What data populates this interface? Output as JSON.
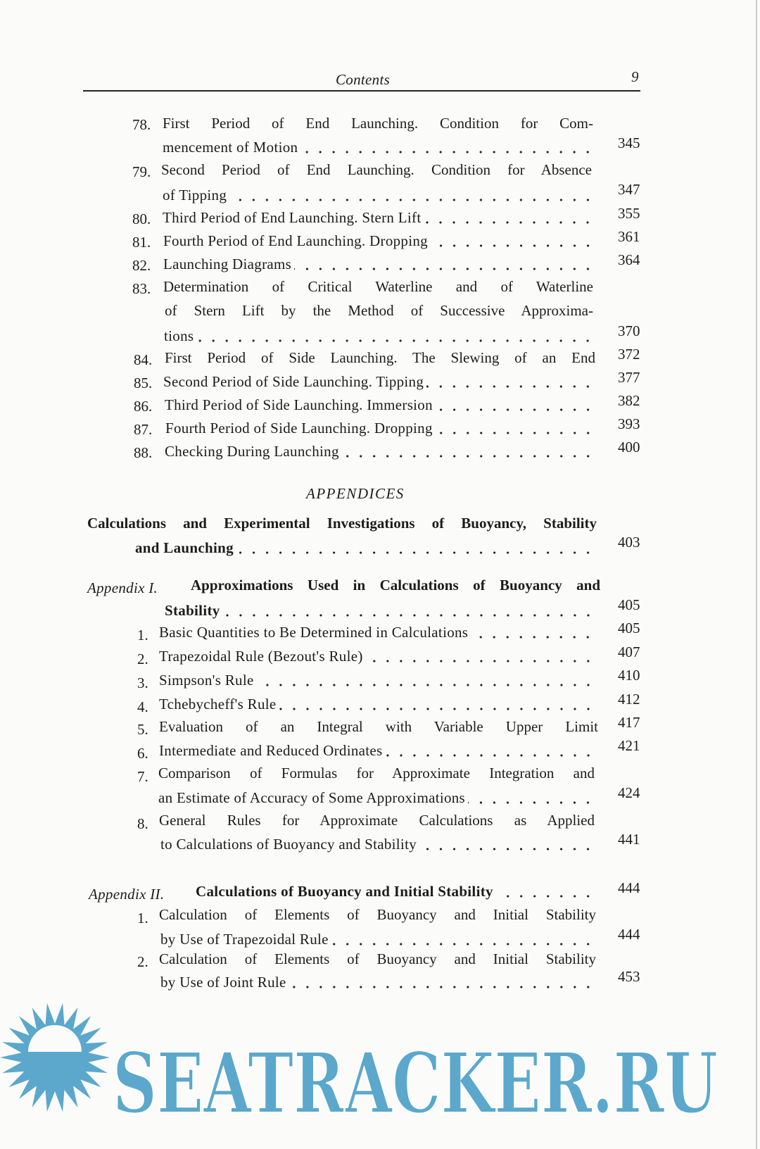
{
  "header": {
    "title": "Contents",
    "page": "9"
  },
  "entries": [
    {
      "num": "78.",
      "lines": [
        "First Period of End Launching. Condition for Com-",
        "mencement of Motion"
      ],
      "page": "345"
    },
    {
      "num": "79.",
      "lines": [
        "Second Period of End Launching. Condition for Absence",
        "of Tipping"
      ],
      "page": "347"
    },
    {
      "num": "80.",
      "lines": [
        "Third Period of End Launching. Stern Lift"
      ],
      "page": "355"
    },
    {
      "num": "81.",
      "lines": [
        "Fourth Period of End Launching. Dropping"
      ],
      "page": "361"
    },
    {
      "num": "82.",
      "lines": [
        "Launching Diagrams"
      ],
      "page": "364"
    },
    {
      "num": "83.",
      "lines": [
        "Determination of Critical Waterline and of Waterline",
        "of Stern Lift by the Method of Successive Approxima-",
        "tions"
      ],
      "page": "370"
    },
    {
      "num": "84.",
      "lines": [
        "First Period of Side Launching. The Slewing of an End"
      ],
      "page": "372"
    },
    {
      "num": "85.",
      "lines": [
        "Second Period of Side Launching. Tipping"
      ],
      "page": "377"
    },
    {
      "num": "86.",
      "lines": [
        "Third Period of Side Launching. Immersion"
      ],
      "page": "382"
    },
    {
      "num": "87.",
      "lines": [
        "Fourth Period of Side Launching. Dropping"
      ],
      "page": "393"
    },
    {
      "num": "88.",
      "lines": [
        "Checking During Launching"
      ],
      "page": "400"
    }
  ],
  "appendices": {
    "heading": "APPENDICES",
    "intro": {
      "lines": [
        "Calculations and Experimental Investigations of Buoyancy, Stability",
        "and Launching"
      ],
      "page": "403"
    },
    "app1": {
      "label": "Appendix I.",
      "lines": [
        "Approximations Used in Calculations of Buoyancy and",
        "Stability"
      ],
      "page": "405",
      "items": [
        {
          "num": "1.",
          "lines": [
            "Basic Quantities to Be Determined in Calculations"
          ],
          "page": "405"
        },
        {
          "num": "2.",
          "lines": [
            "Trapezoidal Rule (Bezout's Rule)"
          ],
          "page": "407"
        },
        {
          "num": "3.",
          "lines": [
            "Simpson's Rule"
          ],
          "page": "410"
        },
        {
          "num": "4.",
          "lines": [
            "Tchebycheff's Rule"
          ],
          "page": "412"
        },
        {
          "num": "5.",
          "lines": [
            "Evaluation of an Integral with Variable Upper Limit"
          ],
          "page": "417"
        },
        {
          "num": "6.",
          "lines": [
            "Intermediate and Reduced Ordinates"
          ],
          "page": "421"
        },
        {
          "num": "7.",
          "lines": [
            "Comparison of Formulas for Approximate Integration and",
            "an Estimate of Accuracy of Some Approximations"
          ],
          "page": "424"
        },
        {
          "num": "8.",
          "lines": [
            "General Rules for Approximate Calculations as Applied",
            "to Calculations of Buoyancy and Stability"
          ],
          "page": "441"
        }
      ]
    },
    "app2": {
      "label": "Appendix II.",
      "lines": [
        "Calculations of Buoyancy and Initial Stability"
      ],
      "page": "444",
      "items": [
        {
          "num": "1.",
          "lines": [
            "Calculation of Elements of Buoyancy and Initial Stability",
            "by Use of Trapezoidal Rule"
          ],
          "page": "444"
        },
        {
          "num": "2.",
          "lines": [
            "Calculation of Elements of Buoyancy and Initial Stability",
            "by Use of Joint Rule"
          ],
          "page": "453"
        }
      ]
    }
  },
  "watermark": {
    "text": "SEATRACKER.RU",
    "color": "#5ba8cc"
  }
}
